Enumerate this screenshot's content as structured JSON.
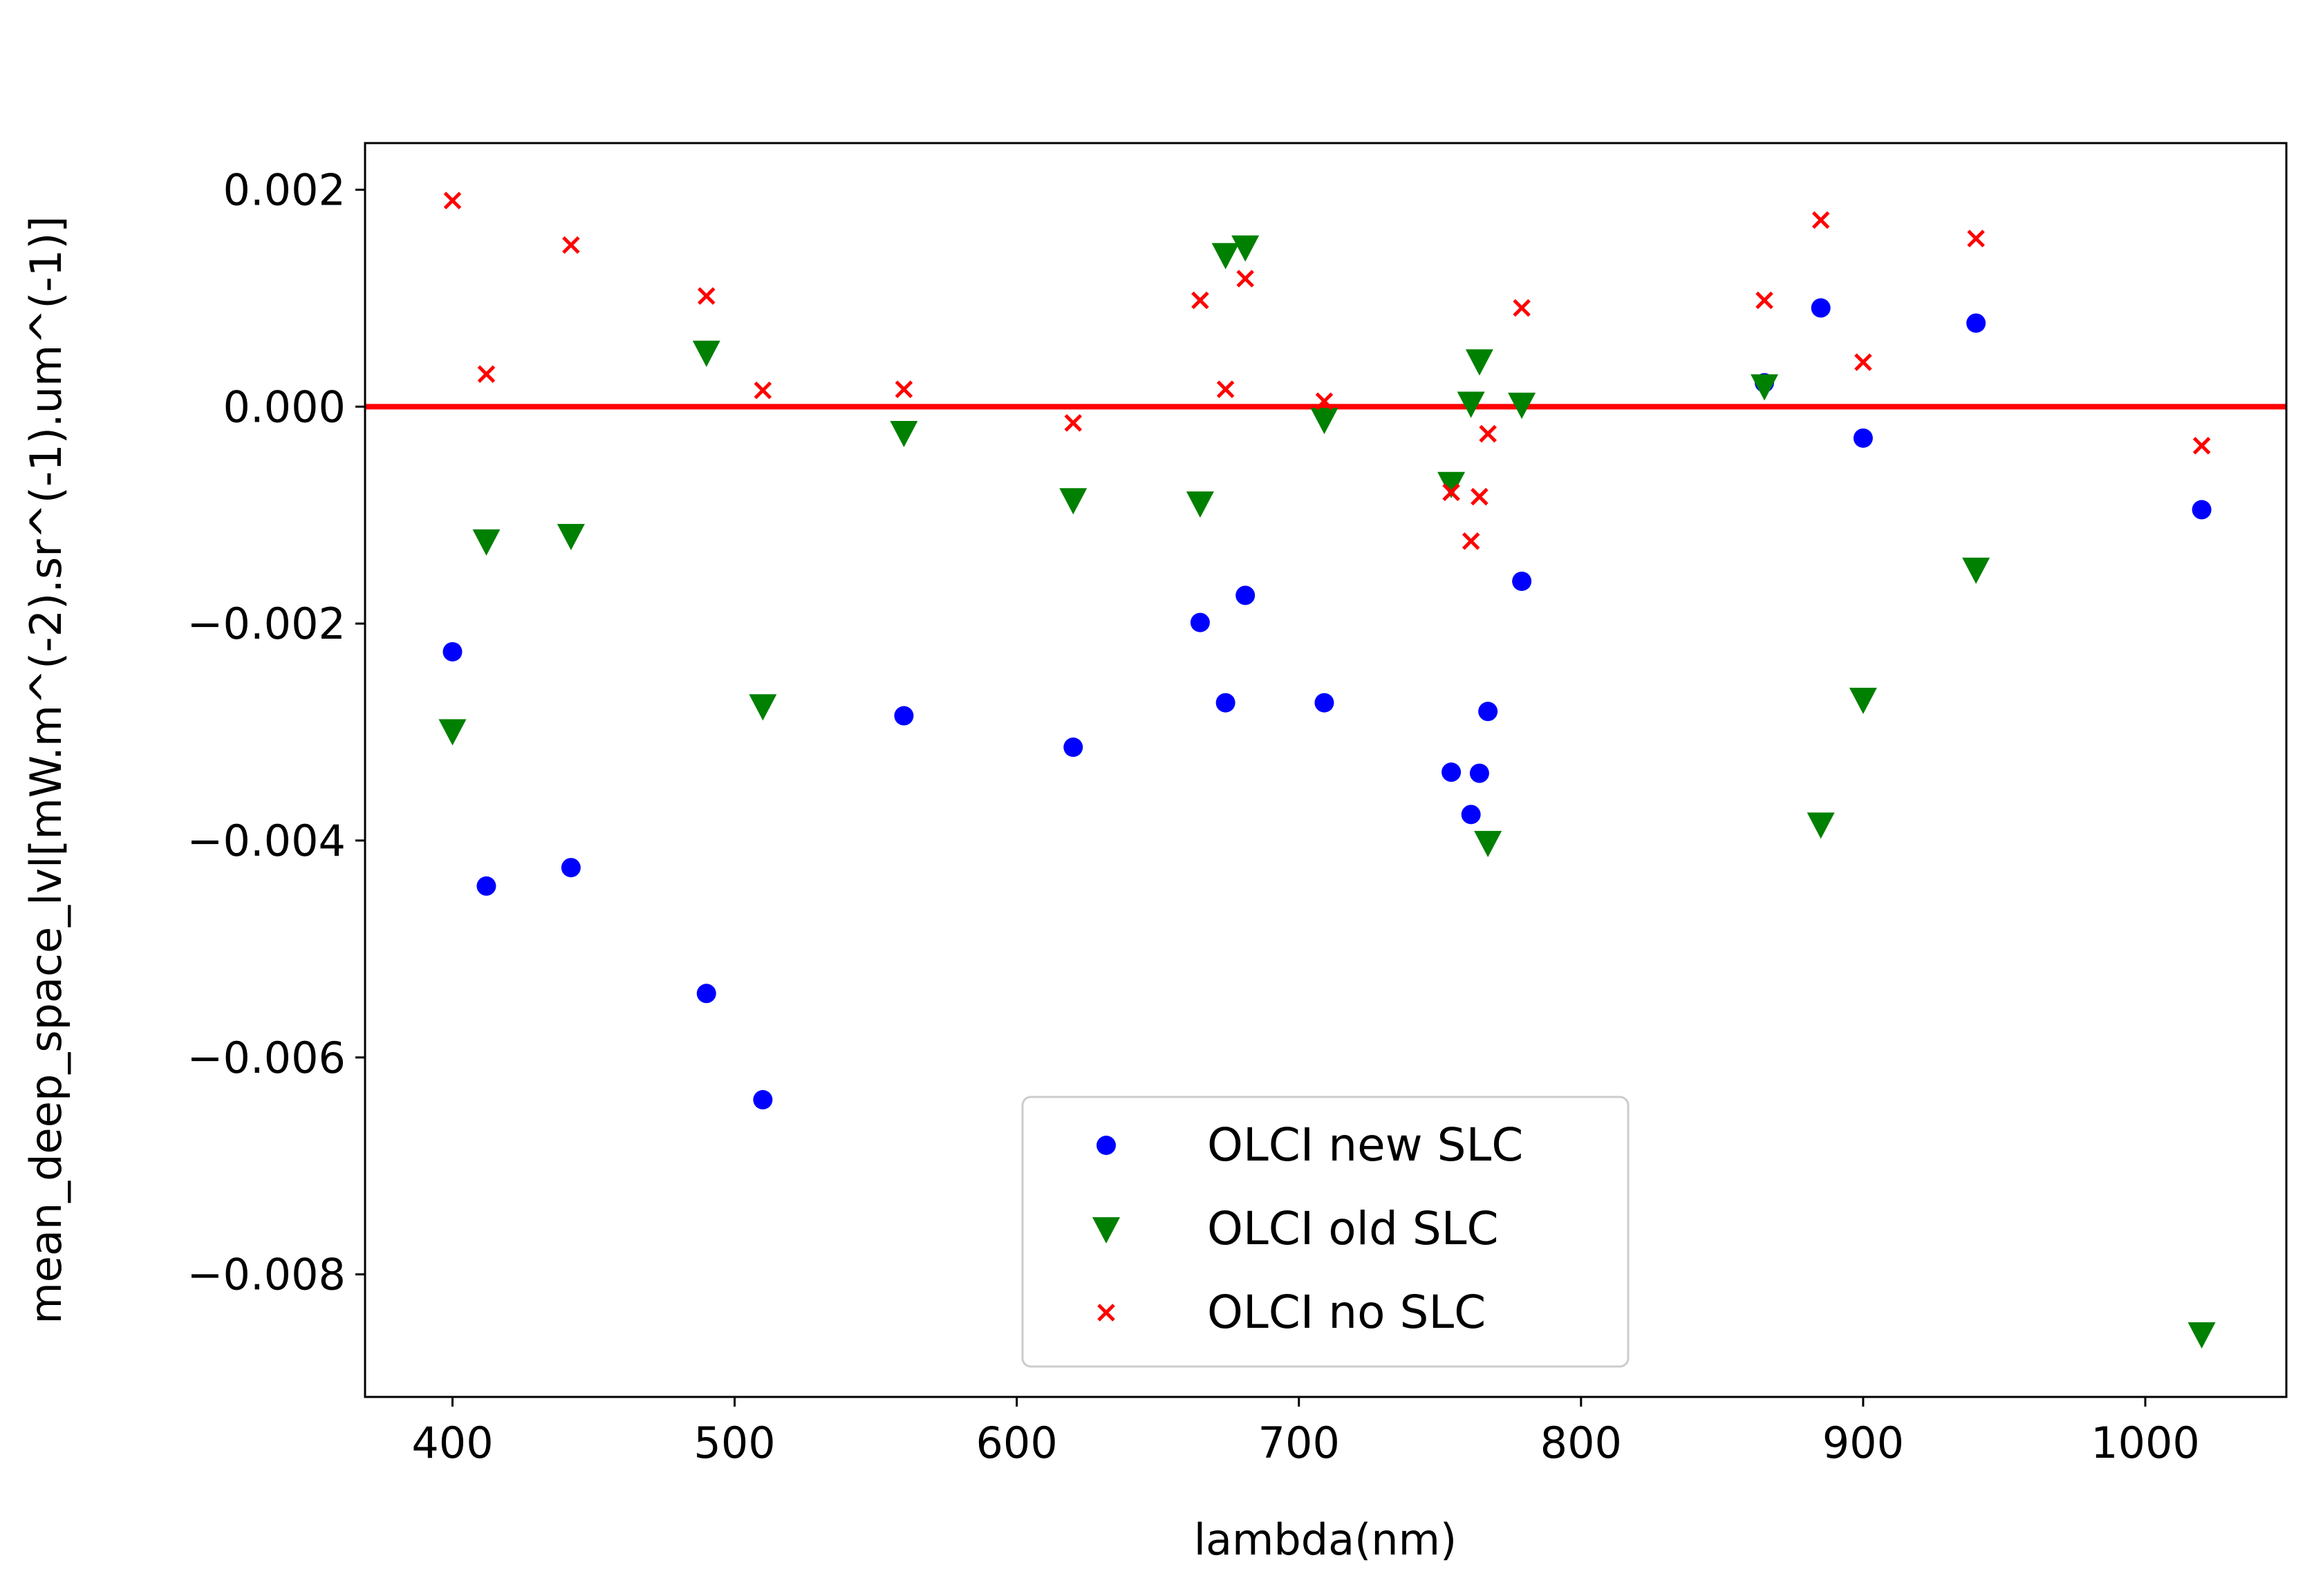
{
  "chart_data": {
    "type": "scatter",
    "title": "",
    "xlabel": "lambda(nm)",
    "ylabel": "mean_deep_space_lvl[mW.m^(-2).sr^(-1).um^(-1)]",
    "xlim": [
      369,
      1050
    ],
    "ylim": [
      -0.00913,
      0.00243
    ],
    "xticks": [
      400,
      500,
      600,
      700,
      800,
      900,
      1000
    ],
    "xtick_labels": [
      "400",
      "500",
      "600",
      "700",
      "800",
      "900",
      "1000"
    ],
    "yticks": [
      0.002,
      0.0,
      -0.002,
      -0.004,
      -0.006,
      -0.008
    ],
    "ytick_labels": [
      "0.002",
      "0.000",
      "−0.002",
      "−0.004",
      "−0.006",
      "−0.008"
    ],
    "grid": false,
    "reference_line": {
      "y": 0.0,
      "color": "#ff0000"
    },
    "legend": {
      "location": "lower-center"
    },
    "series": [
      {
        "name": "OLCI new SLC",
        "marker": "circle",
        "color": "#0000ff",
        "points": [
          [
            400,
            -0.00226
          ],
          [
            412,
            -0.00442
          ],
          [
            442,
            -0.00425
          ],
          [
            490,
            -0.00541
          ],
          [
            510,
            -0.00639
          ],
          [
            560,
            -0.00285
          ],
          [
            620,
            -0.00314
          ],
          [
            665,
            -0.00199
          ],
          [
            674,
            -0.00273
          ],
          [
            681,
            -0.00174
          ],
          [
            709,
            -0.00273
          ],
          [
            754,
            -0.00337
          ],
          [
            761,
            -0.00376
          ],
          [
            764,
            -0.00338
          ],
          [
            767,
            -0.00281
          ],
          [
            779,
            -0.00161
          ],
          [
            865,
            0.00022
          ],
          [
            885,
            0.00091
          ],
          [
            900,
            -0.00029
          ],
          [
            940,
            0.00077
          ],
          [
            1020,
            -0.00095
          ]
        ]
      },
      {
        "name": "OLCI old SLC",
        "marker": "triangle-down",
        "color": "#008000",
        "points": [
          [
            400,
            -0.00299
          ],
          [
            412,
            -0.00124
          ],
          [
            442,
            -0.00119
          ],
          [
            490,
            0.0005
          ],
          [
            510,
            -0.00276
          ],
          [
            560,
            -0.00024
          ],
          [
            620,
            -0.00086
          ],
          [
            665,
            -0.00089
          ],
          [
            674,
            0.0014
          ],
          [
            681,
            0.00147
          ],
          [
            709,
            -0.00012
          ],
          [
            754,
            -0.00071
          ],
          [
            761,
            3e-05
          ],
          [
            764,
            0.00042
          ],
          [
            767,
            -0.00402
          ],
          [
            779,
            2e-05
          ],
          [
            865,
            0.00019
          ],
          [
            885,
            -0.00385
          ],
          [
            900,
            -0.0027
          ],
          [
            940,
            -0.0015
          ],
          [
            1020,
            -0.00855
          ]
        ]
      },
      {
        "name": "OLCI no SLC",
        "marker": "x",
        "color": "#ff0000",
        "points": [
          [
            400,
            0.0019
          ],
          [
            412,
            0.0003
          ],
          [
            442,
            0.00149
          ],
          [
            490,
            0.00102
          ],
          [
            510,
            0.00015
          ],
          [
            560,
            0.00016
          ],
          [
            620,
            -0.00015
          ],
          [
            665,
            0.00098
          ],
          [
            674,
            0.00016
          ],
          [
            681,
            0.00118
          ],
          [
            709,
            5e-05
          ],
          [
            754,
            -0.00079
          ],
          [
            761,
            -0.00124
          ],
          [
            764,
            -0.00083
          ],
          [
            767,
            -0.00025
          ],
          [
            779,
            0.00091
          ],
          [
            865,
            0.00098
          ],
          [
            885,
            0.00172
          ],
          [
            900,
            0.00041
          ],
          [
            940,
            0.00155
          ],
          [
            1020,
            -0.00036
          ]
        ]
      }
    ]
  }
}
